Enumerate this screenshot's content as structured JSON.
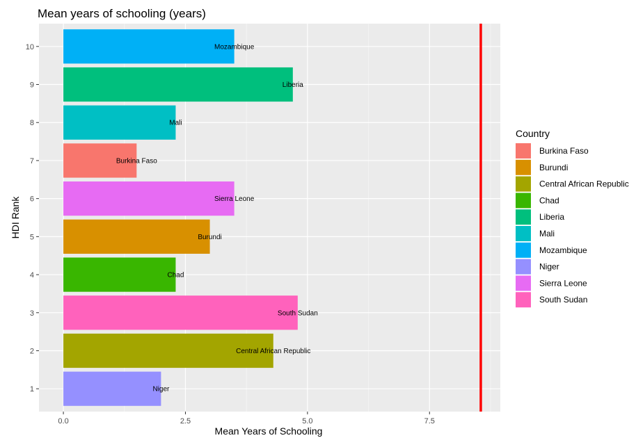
{
  "chart_data": {
    "type": "bar",
    "orientation": "horizontal",
    "title": "Mean years of schooling (years)",
    "xlabel": "Mean Years of Schooling",
    "ylabel": "HDI Rank",
    "xlim": [
      -0.5,
      8.95
    ],
    "ylim": [
      0.4,
      10.6
    ],
    "x_ticks": [
      "0.0",
      "2.5",
      "5.0",
      "7.5"
    ],
    "y_ticks": [
      "1",
      "2",
      "3",
      "4",
      "5",
      "6",
      "7",
      "8",
      "9",
      "10"
    ],
    "grid": true,
    "legend_title": "Country",
    "legend_position": "right",
    "reference_line": {
      "x": 8.55,
      "color": "#ff0000"
    },
    "series": [
      {
        "name": "Burkina Faso",
        "rank": 7,
        "value": 1.5,
        "color": "#f8766d"
      },
      {
        "name": "Burundi",
        "rank": 5,
        "value": 3.0,
        "color": "#d89000"
      },
      {
        "name": "Central African Republic",
        "rank": 2,
        "value": 4.3,
        "color": "#a3a500"
      },
      {
        "name": "Chad",
        "rank": 4,
        "value": 2.3,
        "color": "#39b600"
      },
      {
        "name": "Liberia",
        "rank": 9,
        "value": 4.7,
        "color": "#00bf7d"
      },
      {
        "name": "Mali",
        "rank": 8,
        "value": 2.3,
        "color": "#00bfc4"
      },
      {
        "name": "Mozambique",
        "rank": 10,
        "value": 3.5,
        "color": "#00b0f6"
      },
      {
        "name": "Niger",
        "rank": 1,
        "value": 2.0,
        "color": "#9590ff"
      },
      {
        "name": "Sierra Leone",
        "rank": 6,
        "value": 3.5,
        "color": "#e76bf3"
      },
      {
        "name": "South Sudan",
        "rank": 3,
        "value": 4.8,
        "color": "#ff62bc"
      }
    ]
  },
  "colors": {
    "panel_background": "#ebebeb",
    "grid_major": "#ffffff",
    "grid_minor": "#f5f5f5"
  }
}
